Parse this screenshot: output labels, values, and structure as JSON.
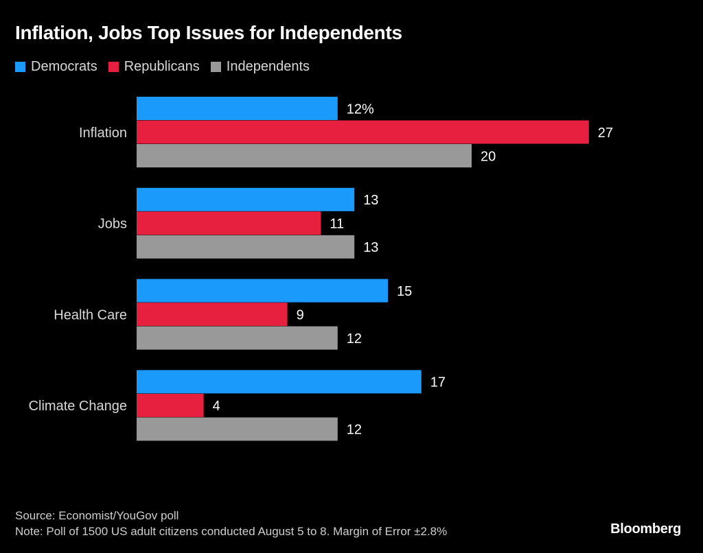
{
  "chart_data": {
    "type": "bar",
    "orientation": "horizontal",
    "title": "Inflation, Jobs Top Issues for Independents",
    "categories": [
      "Inflation",
      "Jobs",
      "Health Care",
      "Climate Change"
    ],
    "series": [
      {
        "name": "Democrats",
        "color": "#1a9bfc",
        "values": [
          12,
          13,
          15,
          17
        ]
      },
      {
        "name": "Republicans",
        "color": "#e8203f",
        "values": [
          27,
          11,
          9,
          4
        ]
      },
      {
        "name": "Independents",
        "color": "#999999",
        "values": [
          20,
          13,
          12,
          12
        ]
      }
    ],
    "value_labels": [
      [
        "12%",
        "27",
        "20"
      ],
      [
        "13",
        "11",
        "13"
      ],
      [
        "15",
        "9",
        "12"
      ],
      [
        "17",
        "4",
        "12"
      ]
    ],
    "xlabel": "",
    "ylabel": "",
    "xlim": [
      0,
      28
    ],
    "grid": false,
    "legend_position": "top-left"
  },
  "legend": [
    {
      "label": "Democrats",
      "color": "#1a9bfc"
    },
    {
      "label": "Republicans",
      "color": "#e8203f"
    },
    {
      "label": "Independents",
      "color": "#999999"
    }
  ],
  "footer": {
    "source": "Source: Economist/YouGov poll",
    "note": "Note: Poll of 1500 US adult citizens conducted August 5 to 8. Margin of Error ±2.8%"
  },
  "brand": "Bloomberg"
}
